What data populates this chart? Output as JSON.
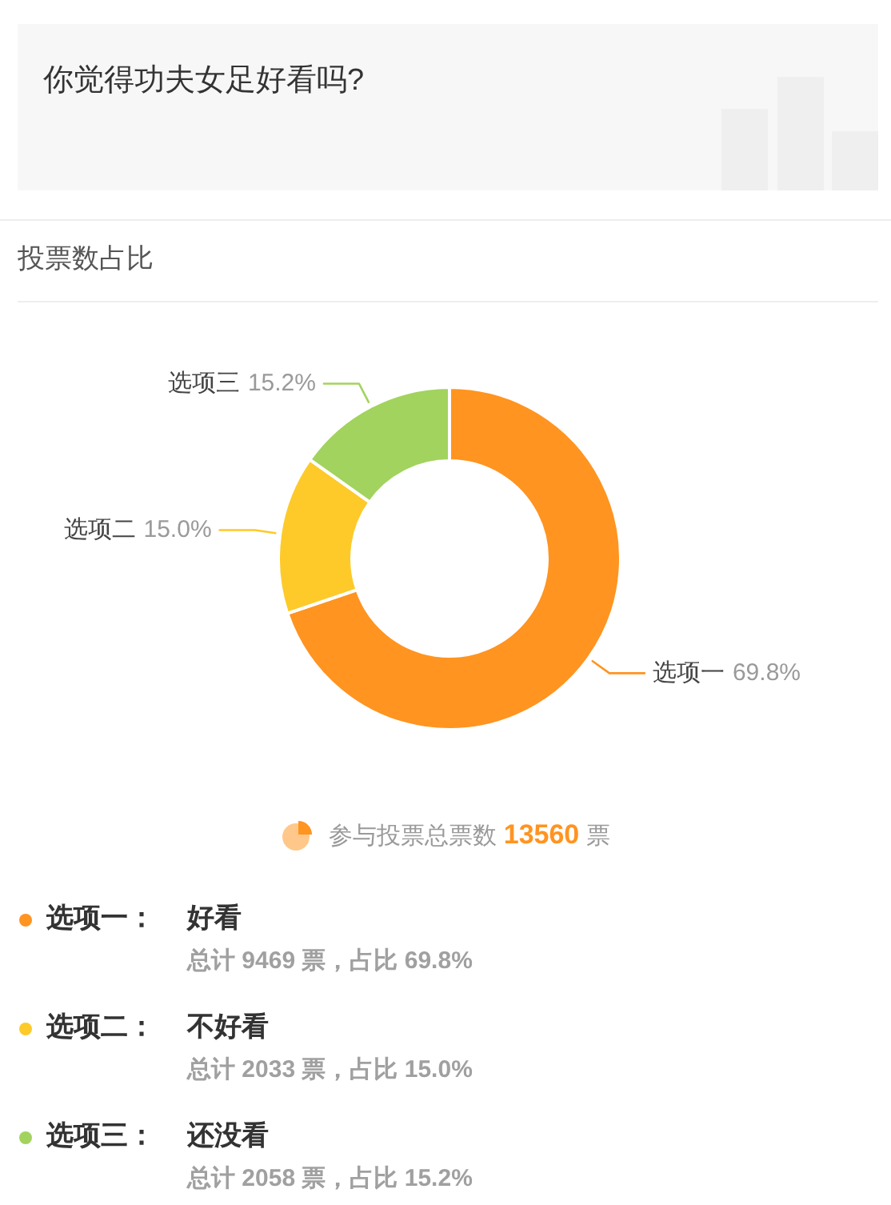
{
  "chart_data": {
    "type": "donut",
    "title": "你觉得功夫女足好看吗?",
    "subtitle": "投票数占比",
    "categories": [
      "选项一",
      "选项二",
      "选项三"
    ],
    "values": [
      69.8,
      15.0,
      15.2
    ],
    "colors": [
      "#ff9420",
      "#fdca2a",
      "#a2d35e"
    ],
    "value_labels": [
      "69.8%",
      "15.0%",
      "15.2%"
    ],
    "legend": false,
    "annotations": [
      "参与投票总票数 13560 票",
      "选项一：",
      "好看",
      "总计 9469 票，占比 69.8%",
      "选项二：",
      "不好看",
      "总计 2033 票，占比 15.0%",
      "选项三：",
      "还没看",
      "总计 2058 票，占比 15.2%"
    ]
  }
}
